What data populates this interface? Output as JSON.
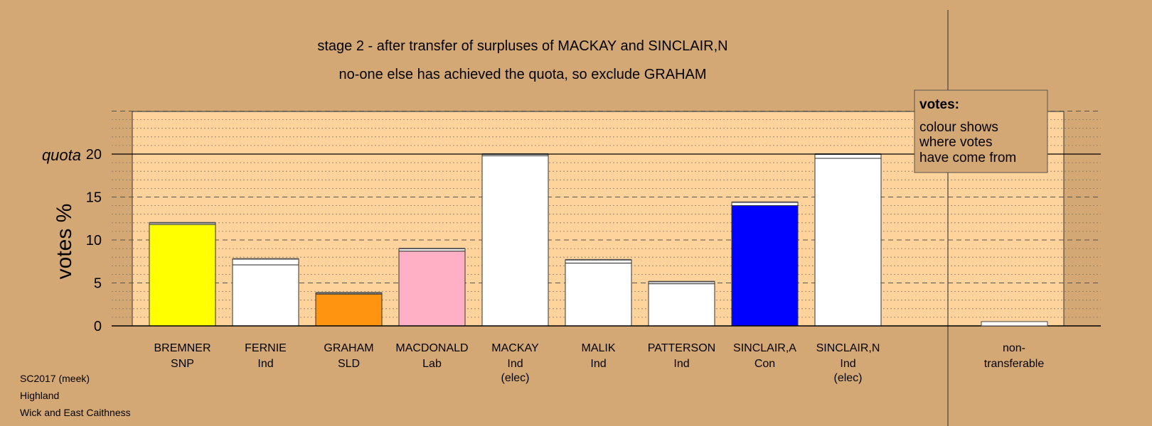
{
  "chart_data": {
    "type": "bar",
    "title": "stage 2 - after transfer of surpluses of MACKAY and SINCLAIR,N",
    "subtitle": "no-one else has achieved the quota, so exclude GRAHAM",
    "ylabel": "votes %",
    "quota_label": "quota",
    "quota": 20,
    "ylim": [
      0,
      25
    ],
    "yticks": [
      0,
      5,
      10,
      15,
      20
    ],
    "grid": true,
    "colors": {
      "background": "#d4a874",
      "plot_area": "#ffd39b",
      "snp": "#ffff00",
      "sld": "#ff9410",
      "lab": "#ffb0c4",
      "con": "#0000ff",
      "ind": "#ffffff",
      "transfer": "#808080"
    },
    "categories": [
      {
        "name": "BREMNER",
        "party": "SNP",
        "note": "",
        "base": 11.8,
        "total": 12.0,
        "color": "#ffff00"
      },
      {
        "name": "FERNIE",
        "party": "Ind",
        "note": "",
        "base": 7.1,
        "total": 7.8,
        "color": "#ffffff"
      },
      {
        "name": "GRAHAM",
        "party": "SLD",
        "note": "",
        "base": 3.7,
        "total": 3.85,
        "color": "#ff9410"
      },
      {
        "name": "MACDONALD",
        "party": "Lab",
        "note": "",
        "base": 8.7,
        "total": 9.0,
        "color": "#ffb0c4"
      },
      {
        "name": "MACKAY",
        "party": "Ind",
        "note": "(elec)",
        "base": 19.8,
        "total": 20.0,
        "color": "#ffffff"
      },
      {
        "name": "MALIK",
        "party": "Ind",
        "note": "",
        "base": 7.3,
        "total": 7.7,
        "color": "#ffffff"
      },
      {
        "name": "PATTERSON",
        "party": "Ind",
        "note": "",
        "base": 4.9,
        "total": 5.15,
        "color": "#ffffff"
      },
      {
        "name": "SINCLAIR,A",
        "party": "Con",
        "note": "",
        "base": 14.0,
        "total": 14.4,
        "color": "#0000ff"
      },
      {
        "name": "SINCLAIR,N",
        "party": "Ind",
        "note": "(elec)",
        "base": 19.5,
        "total": 20.0,
        "color": "#ffffff"
      }
    ],
    "nontransferable": {
      "line1": "non-",
      "line2": "transferable",
      "value": 0.5
    }
  },
  "legend": {
    "heading": "votes:",
    "lines": [
      "colour shows",
      "where votes",
      "have come from"
    ]
  },
  "footer": {
    "line1": "SC2017 (meek)",
    "line2": "Highland",
    "line3": "Wick and East Caithness"
  }
}
